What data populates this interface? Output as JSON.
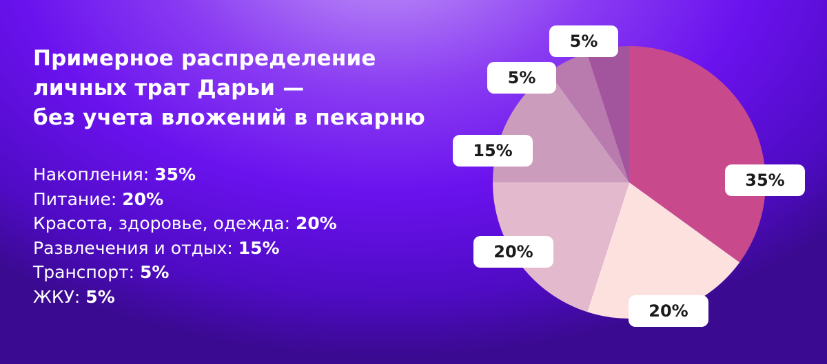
{
  "chart_data": {
    "type": "pie",
    "title": [
      "Примерное распределение",
      "личных трат Дарьи —",
      "без учета вложений в пекарню"
    ],
    "categories": [
      "Накопления:",
      "Питание:",
      "Красота, здоровье, одежда:",
      "Развлечения и отдых:",
      "Транспорт:",
      "ЖКУ:"
    ],
    "values": [
      35,
      20,
      20,
      15,
      5,
      5
    ],
    "value_labels": [
      "35%",
      "20%",
      "20%",
      "15%",
      "5%",
      "5%"
    ],
    "colors": [
      "#c84a8d",
      "#fde1df",
      "#e3bacd",
      "#cb9cbb",
      "#b97aad",
      "#a2549c"
    ]
  }
}
